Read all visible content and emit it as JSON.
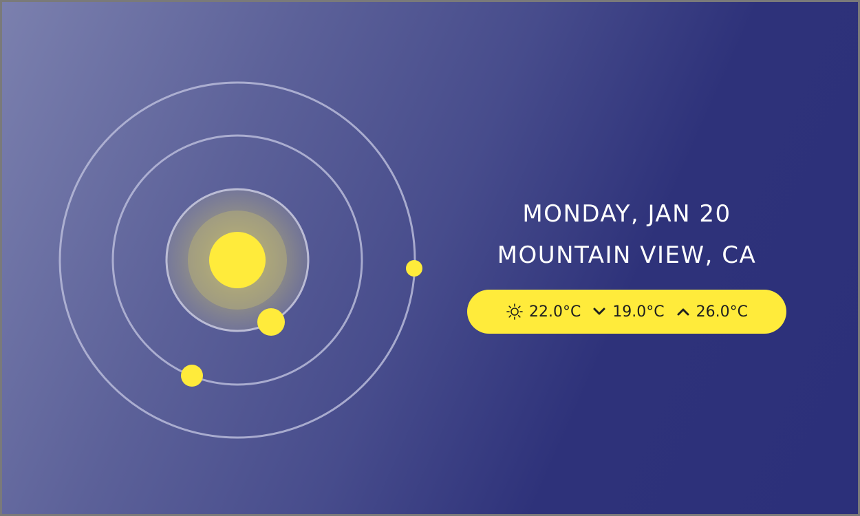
{
  "date_label": "MONDAY, JAN 20",
  "location_label": "MOUNTAIN VIEW, CA",
  "weather": {
    "current": "22.0°C",
    "low": "19.0°C",
    "high": "26.0°C",
    "current_icon": "sun-icon",
    "low_icon": "chevron-down-icon",
    "high_icon": "chevron-up-icon"
  },
  "colors": {
    "accent": "#ffeb3b",
    "orbit": "#b9bbd9",
    "text": "#ffffff"
  }
}
